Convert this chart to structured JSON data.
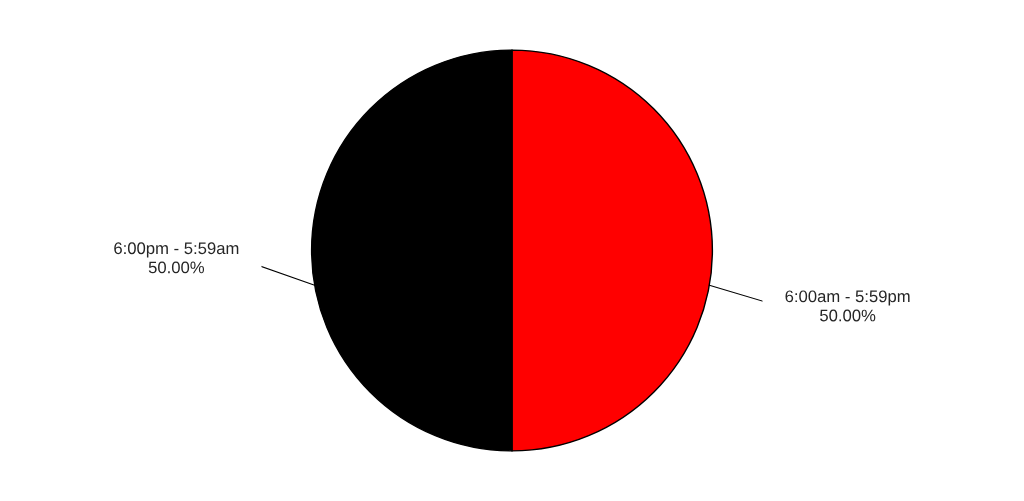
{
  "chart_data": {
    "type": "pie",
    "categories": [
      "6:00am - 5:59pm",
      "6:00pm - 5:59am"
    ],
    "values": [
      50,
      50
    ],
    "colors": [
      "#ff0000",
      "#000000"
    ],
    "value_labels": [
      "50.00%",
      "50.00%"
    ],
    "legend": false
  }
}
